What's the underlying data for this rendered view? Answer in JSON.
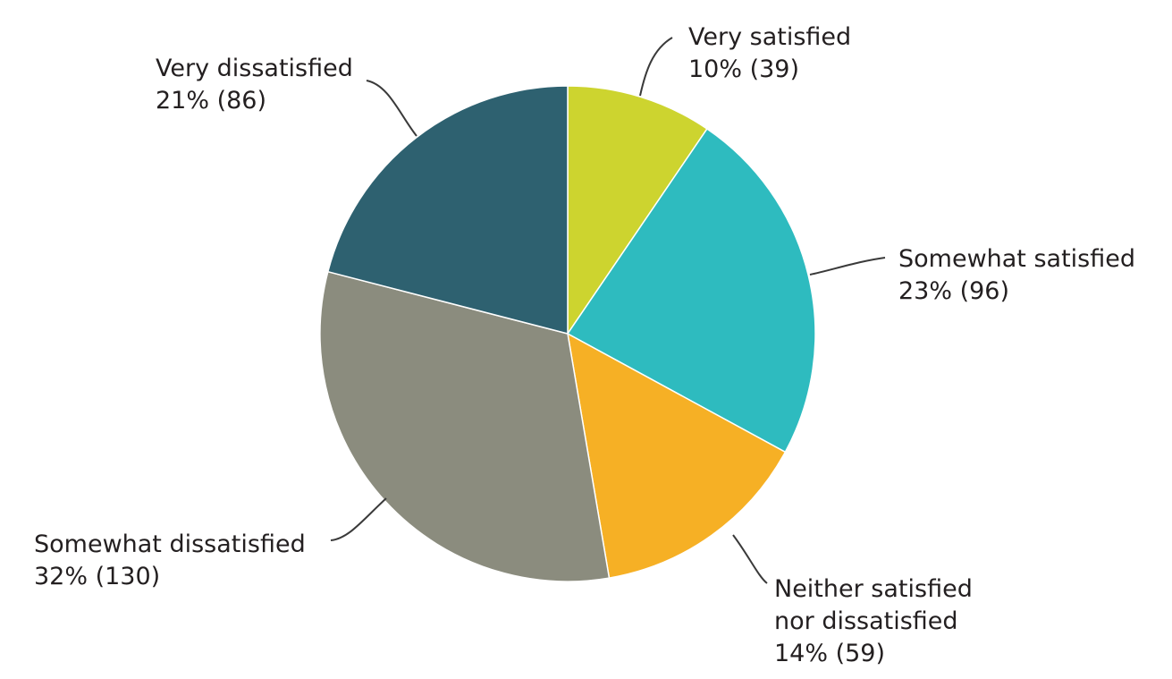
{
  "chart_data": {
    "type": "pie",
    "title": "",
    "start_angle_deg": 0,
    "direction": "clockwise",
    "slices": [
      {
        "name": "Very satisfied",
        "label_lines": [
          "Very satisfied"
        ],
        "percent_label": "10% (39)",
        "percent": 10,
        "count": 39,
        "color": "#cdd42f"
      },
      {
        "name": "Somewhat satisfied",
        "label_lines": [
          "Somewhat satisfied"
        ],
        "percent_label": "23% (96)",
        "percent": 23,
        "count": 96,
        "color": "#2ebbbf"
      },
      {
        "name": "Neither satisfied nor dissatisfied",
        "label_lines": [
          "Neither satisfied",
          "nor dissatisfied"
        ],
        "percent_label": "14% (59)",
        "percent": 14,
        "count": 59,
        "color": "#f6b025"
      },
      {
        "name": "Somewhat dissatisfied",
        "label_lines": [
          "Somewhat dissatisfied"
        ],
        "percent_label": "32% (130)",
        "percent": 32,
        "count": 130,
        "color": "#8b8c7e"
      },
      {
        "name": "Very dissatisfied",
        "label_lines": [
          "Very dissatisfied"
        ],
        "percent_label": "21% (86)",
        "percent": 21,
        "count": 86,
        "color": "#2e6170"
      }
    ]
  }
}
